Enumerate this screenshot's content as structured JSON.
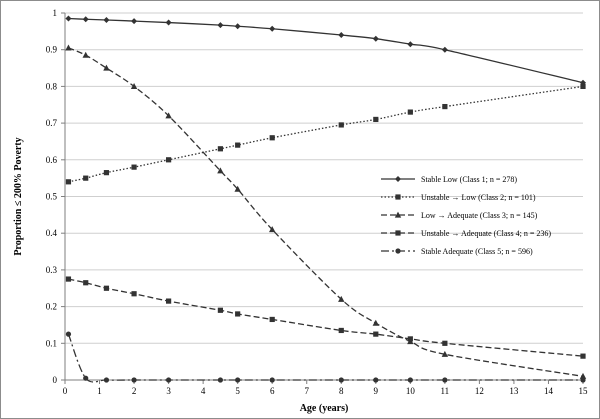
{
  "chart_data": {
    "type": "line",
    "xlabel": "Age (years)",
    "ylabel": "Proportion ≤ 200% Poverty",
    "xlim": [
      0,
      15
    ],
    "ylim": [
      0,
      1
    ],
    "xticks": [
      "0",
      "1",
      "2",
      "3",
      "4",
      "5",
      "6",
      "7",
      "8",
      "9",
      "10",
      "11",
      "12",
      "13",
      "14",
      "15"
    ],
    "yticks": [
      "0",
      "0.1",
      "0.2",
      "0.3",
      "0.4",
      "0.5",
      "0.6",
      "0.7",
      "0.8",
      "0.9",
      "1"
    ],
    "grid": "horizontal",
    "legend_position": "right-center",
    "series": [
      {
        "name": "Stable Low (Class 1; n = 278)",
        "marker": "diamond",
        "dash": "solid",
        "x": [
          0.1,
          0.6,
          1.2,
          2,
          3,
          4.5,
          5,
          6,
          8,
          9,
          10,
          11,
          15
        ],
        "y": [
          0.985,
          0.983,
          0.981,
          0.978,
          0.974,
          0.967,
          0.964,
          0.957,
          0.94,
          0.93,
          0.915,
          0.9,
          0.81
        ]
      },
      {
        "name": "Unstable → Low (Class 2; n = 101)",
        "marker": "square",
        "dash": "dotted",
        "x": [
          0.1,
          0.6,
          1.2,
          2,
          3,
          4.5,
          5,
          6,
          8,
          9,
          10,
          11,
          15
        ],
        "y": [
          0.54,
          0.55,
          0.565,
          0.58,
          0.6,
          0.63,
          0.64,
          0.66,
          0.695,
          0.71,
          0.73,
          0.745,
          0.8
        ]
      },
      {
        "name": "Low → Adequate (Class 3; n = 145)",
        "marker": "triangle",
        "dash": "dashed",
        "x": [
          0.1,
          0.6,
          1.2,
          2,
          3,
          4.5,
          5,
          6,
          8,
          9,
          10,
          11,
          15
        ],
        "y": [
          0.905,
          0.885,
          0.85,
          0.8,
          0.72,
          0.57,
          0.52,
          0.41,
          0.22,
          0.155,
          0.105,
          0.07,
          0.01
        ]
      },
      {
        "name": "Unstable → Adequate (Class 4; n = 236)",
        "marker": "square",
        "dash": "dashed",
        "x": [
          0.1,
          0.6,
          1.2,
          2,
          3,
          4.5,
          5,
          6,
          8,
          9,
          10,
          11,
          15
        ],
        "y": [
          0.275,
          0.265,
          0.25,
          0.235,
          0.215,
          0.19,
          0.18,
          0.165,
          0.135,
          0.125,
          0.112,
          0.1,
          0.065
        ]
      },
      {
        "name": "Stable Adequate (Class 5; n = 596)",
        "marker": "circle",
        "dash": "dashdot",
        "x": [
          0.1,
          0.6,
          1.2,
          2,
          3,
          4.5,
          5,
          6,
          8,
          9,
          10,
          11,
          15
        ],
        "y": [
          0.125,
          0.005,
          0.0,
          0.0,
          0.0,
          0.0,
          0.0,
          0.0,
          0.0,
          0.0,
          0.0,
          0.0,
          0.0
        ]
      }
    ]
  }
}
